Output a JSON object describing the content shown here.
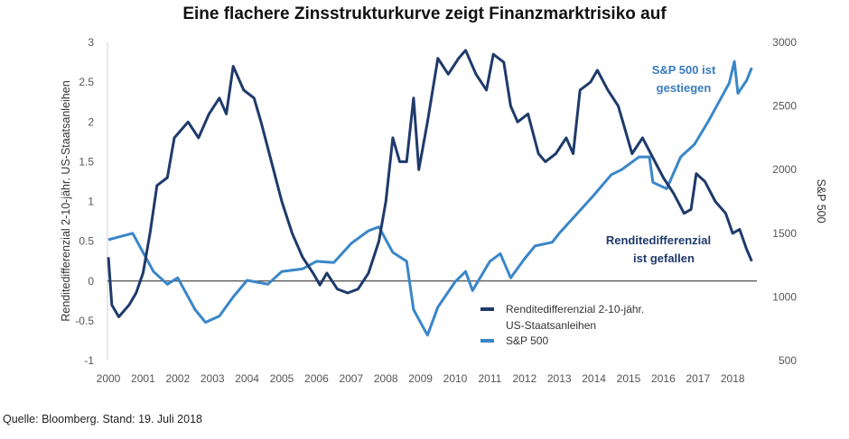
{
  "chart_data": {
    "type": "line",
    "title": "Eine flachere Zinsstrukturkurve zeigt Finanzmarktrisiko auf",
    "ylabel": "Renditedifferenzial 2-10-jähr. US-Staatsanleihen",
    "y2label": "S&P 500",
    "xlim": [
      2000,
      2018.55
    ],
    "ylim": [
      -1,
      3
    ],
    "y2lim": [
      500,
      3000
    ],
    "x_ticks": [
      "2000",
      "2001",
      "2002",
      "2003",
      "2004",
      "2005",
      "2006",
      "2007",
      "2008",
      "2009",
      "2010",
      "2011",
      "2012",
      "2013",
      "2014",
      "2015",
      "2016",
      "2017",
      "2018"
    ],
    "y_ticks": [
      "3",
      "2.5",
      "2",
      "1.5",
      "1",
      "0.5",
      "0",
      "-0.5",
      "-1"
    ],
    "y2_ticks": [
      "3000",
      "2500",
      "2000",
      "1500",
      "1000",
      "500"
    ],
    "grid": false,
    "zero_line": true,
    "legend_position": "bottom-center",
    "series": [
      {
        "name": "Renditedifferenzial 2-10-jähr. US-Staatsanleihen",
        "axis": "left",
        "color": "#1f3a6b",
        "points": [
          [
            2000.0,
            0.3
          ],
          [
            2000.1,
            -0.3
          ],
          [
            2000.3,
            -0.45
          ],
          [
            2000.6,
            -0.3
          ],
          [
            2000.8,
            -0.15
          ],
          [
            2001.0,
            0.1
          ],
          [
            2001.2,
            0.6
          ],
          [
            2001.4,
            1.2
          ],
          [
            2001.7,
            1.3
          ],
          [
            2001.9,
            1.8
          ],
          [
            2002.1,
            1.9
          ],
          [
            2002.3,
            2.0
          ],
          [
            2002.6,
            1.8
          ],
          [
            2002.9,
            2.1
          ],
          [
            2003.2,
            2.3
          ],
          [
            2003.4,
            2.1
          ],
          [
            2003.6,
            2.7
          ],
          [
            2003.9,
            2.4
          ],
          [
            2004.2,
            2.3
          ],
          [
            2004.4,
            2.0
          ],
          [
            2004.7,
            1.5
          ],
          [
            2005.0,
            1.0
          ],
          [
            2005.3,
            0.6
          ],
          [
            2005.6,
            0.3
          ],
          [
            2005.9,
            0.1
          ],
          [
            2006.1,
            -0.05
          ],
          [
            2006.3,
            0.1
          ],
          [
            2006.6,
            -0.1
          ],
          [
            2006.9,
            -0.15
          ],
          [
            2007.2,
            -0.1
          ],
          [
            2007.5,
            0.1
          ],
          [
            2007.8,
            0.5
          ],
          [
            2008.0,
            1.0
          ],
          [
            2008.2,
            1.8
          ],
          [
            2008.4,
            1.5
          ],
          [
            2008.6,
            1.5
          ],
          [
            2008.8,
            2.3
          ],
          [
            2008.95,
            1.4
          ],
          [
            2009.2,
            2.0
          ],
          [
            2009.5,
            2.8
          ],
          [
            2009.8,
            2.6
          ],
          [
            2010.1,
            2.8
          ],
          [
            2010.3,
            2.9
          ],
          [
            2010.6,
            2.6
          ],
          [
            2010.9,
            2.4
          ],
          [
            2011.1,
            2.85
          ],
          [
            2011.4,
            2.75
          ],
          [
            2011.6,
            2.2
          ],
          [
            2011.8,
            2.0
          ],
          [
            2012.1,
            2.1
          ],
          [
            2012.4,
            1.6
          ],
          [
            2012.6,
            1.5
          ],
          [
            2012.9,
            1.6
          ],
          [
            2013.2,
            1.8
          ],
          [
            2013.4,
            1.6
          ],
          [
            2013.6,
            2.4
          ],
          [
            2013.9,
            2.5
          ],
          [
            2014.1,
            2.65
          ],
          [
            2014.4,
            2.4
          ],
          [
            2014.7,
            2.2
          ],
          [
            2014.9,
            1.9
          ],
          [
            2015.1,
            1.6
          ],
          [
            2015.4,
            1.8
          ],
          [
            2015.7,
            1.55
          ],
          [
            2016.0,
            1.3
          ],
          [
            2016.3,
            1.1
          ],
          [
            2016.6,
            0.85
          ],
          [
            2016.8,
            0.9
          ],
          [
            2016.95,
            1.35
          ],
          [
            2017.2,
            1.25
          ],
          [
            2017.5,
            1.0
          ],
          [
            2017.8,
            0.85
          ],
          [
            2018.0,
            0.6
          ],
          [
            2018.2,
            0.65
          ],
          [
            2018.4,
            0.4
          ],
          [
            2018.55,
            0.25
          ]
        ]
      },
      {
        "name": "S&P 500",
        "axis": "right",
        "color": "#3a86c8",
        "points": [
          [
            2000.0,
            1450
          ],
          [
            2000.7,
            1500
          ],
          [
            2001.0,
            1350
          ],
          [
            2001.3,
            1200
          ],
          [
            2001.7,
            1100
          ],
          [
            2002.0,
            1150
          ],
          [
            2002.5,
            900
          ],
          [
            2002.8,
            800
          ],
          [
            2003.2,
            850
          ],
          [
            2003.6,
            1000
          ],
          [
            2004.0,
            1130
          ],
          [
            2004.6,
            1100
          ],
          [
            2005.0,
            1200
          ],
          [
            2005.6,
            1220
          ],
          [
            2006.0,
            1280
          ],
          [
            2006.5,
            1270
          ],
          [
            2007.0,
            1420
          ],
          [
            2007.5,
            1520
          ],
          [
            2007.8,
            1550
          ],
          [
            2008.2,
            1350
          ],
          [
            2008.6,
            1280
          ],
          [
            2008.8,
            900
          ],
          [
            2009.2,
            700
          ],
          [
            2009.5,
            920
          ],
          [
            2010.0,
            1120
          ],
          [
            2010.3,
            1200
          ],
          [
            2010.5,
            1050
          ],
          [
            2011.0,
            1280
          ],
          [
            2011.3,
            1340
          ],
          [
            2011.6,
            1150
          ],
          [
            2012.0,
            1300
          ],
          [
            2012.3,
            1400
          ],
          [
            2012.8,
            1430
          ],
          [
            2013.0,
            1500
          ],
          [
            2013.5,
            1650
          ],
          [
            2014.0,
            1800
          ],
          [
            2014.5,
            1960
          ],
          [
            2014.8,
            2000
          ],
          [
            2015.3,
            2100
          ],
          [
            2015.6,
            2100
          ],
          [
            2015.7,
            1900
          ],
          [
            2016.1,
            1850
          ],
          [
            2016.5,
            2100
          ],
          [
            2016.9,
            2200
          ],
          [
            2017.3,
            2380
          ],
          [
            2017.9,
            2680
          ],
          [
            2018.05,
            2850
          ],
          [
            2018.15,
            2600
          ],
          [
            2018.4,
            2700
          ],
          [
            2018.55,
            2800
          ]
        ]
      }
    ],
    "annotations": {
      "sp_line1": "S&P 500 ist",
      "sp_line2": "gestiegen",
      "spread_line1": "Renditedifferenzial",
      "spread_line2": "ist gefallen"
    },
    "legend": {
      "item1_line1": "Renditedifferenzial 2-10-jähr.",
      "item1_line2": "US-Staatsanleihen",
      "item2": "S&P 500"
    }
  },
  "source": "Quelle: Bloomberg. Stand: 19. Juli 2018"
}
